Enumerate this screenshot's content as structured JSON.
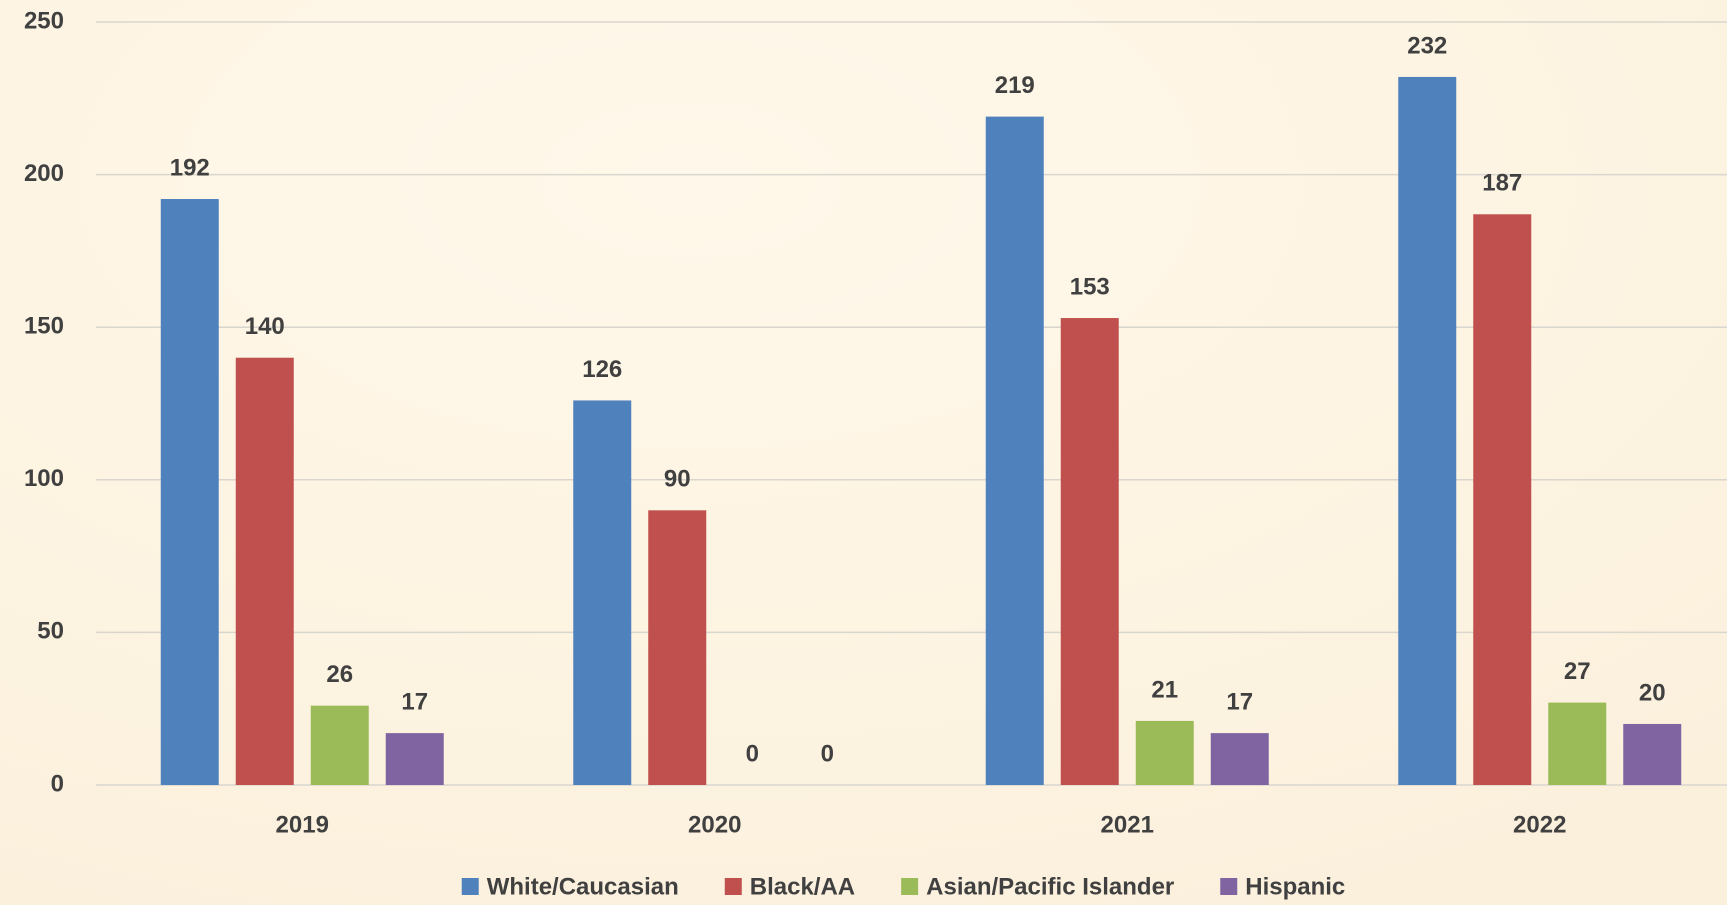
{
  "chart_data": {
    "type": "bar",
    "categories": [
      "2019",
      "2020",
      "2021",
      "2022"
    ],
    "series": [
      {
        "name": "White/Caucasian",
        "color": "#4f81bd",
        "values": [
          192,
          126,
          219,
          232
        ]
      },
      {
        "name": "Black/AA",
        "color": "#c0504d",
        "values": [
          140,
          90,
          153,
          187
        ]
      },
      {
        "name": "Asian/Pacific Islander",
        "color": "#9bbb59",
        "values": [
          26,
          0,
          21,
          27
        ]
      },
      {
        "name": "Hispanic",
        "color": "#8064a2",
        "values": [
          17,
          0,
          17,
          20
        ]
      }
    ],
    "ylim": [
      0,
      250
    ],
    "yticks": [
      0,
      50,
      100,
      150,
      200,
      250
    ],
    "grid": true,
    "legend": "bottom"
  }
}
